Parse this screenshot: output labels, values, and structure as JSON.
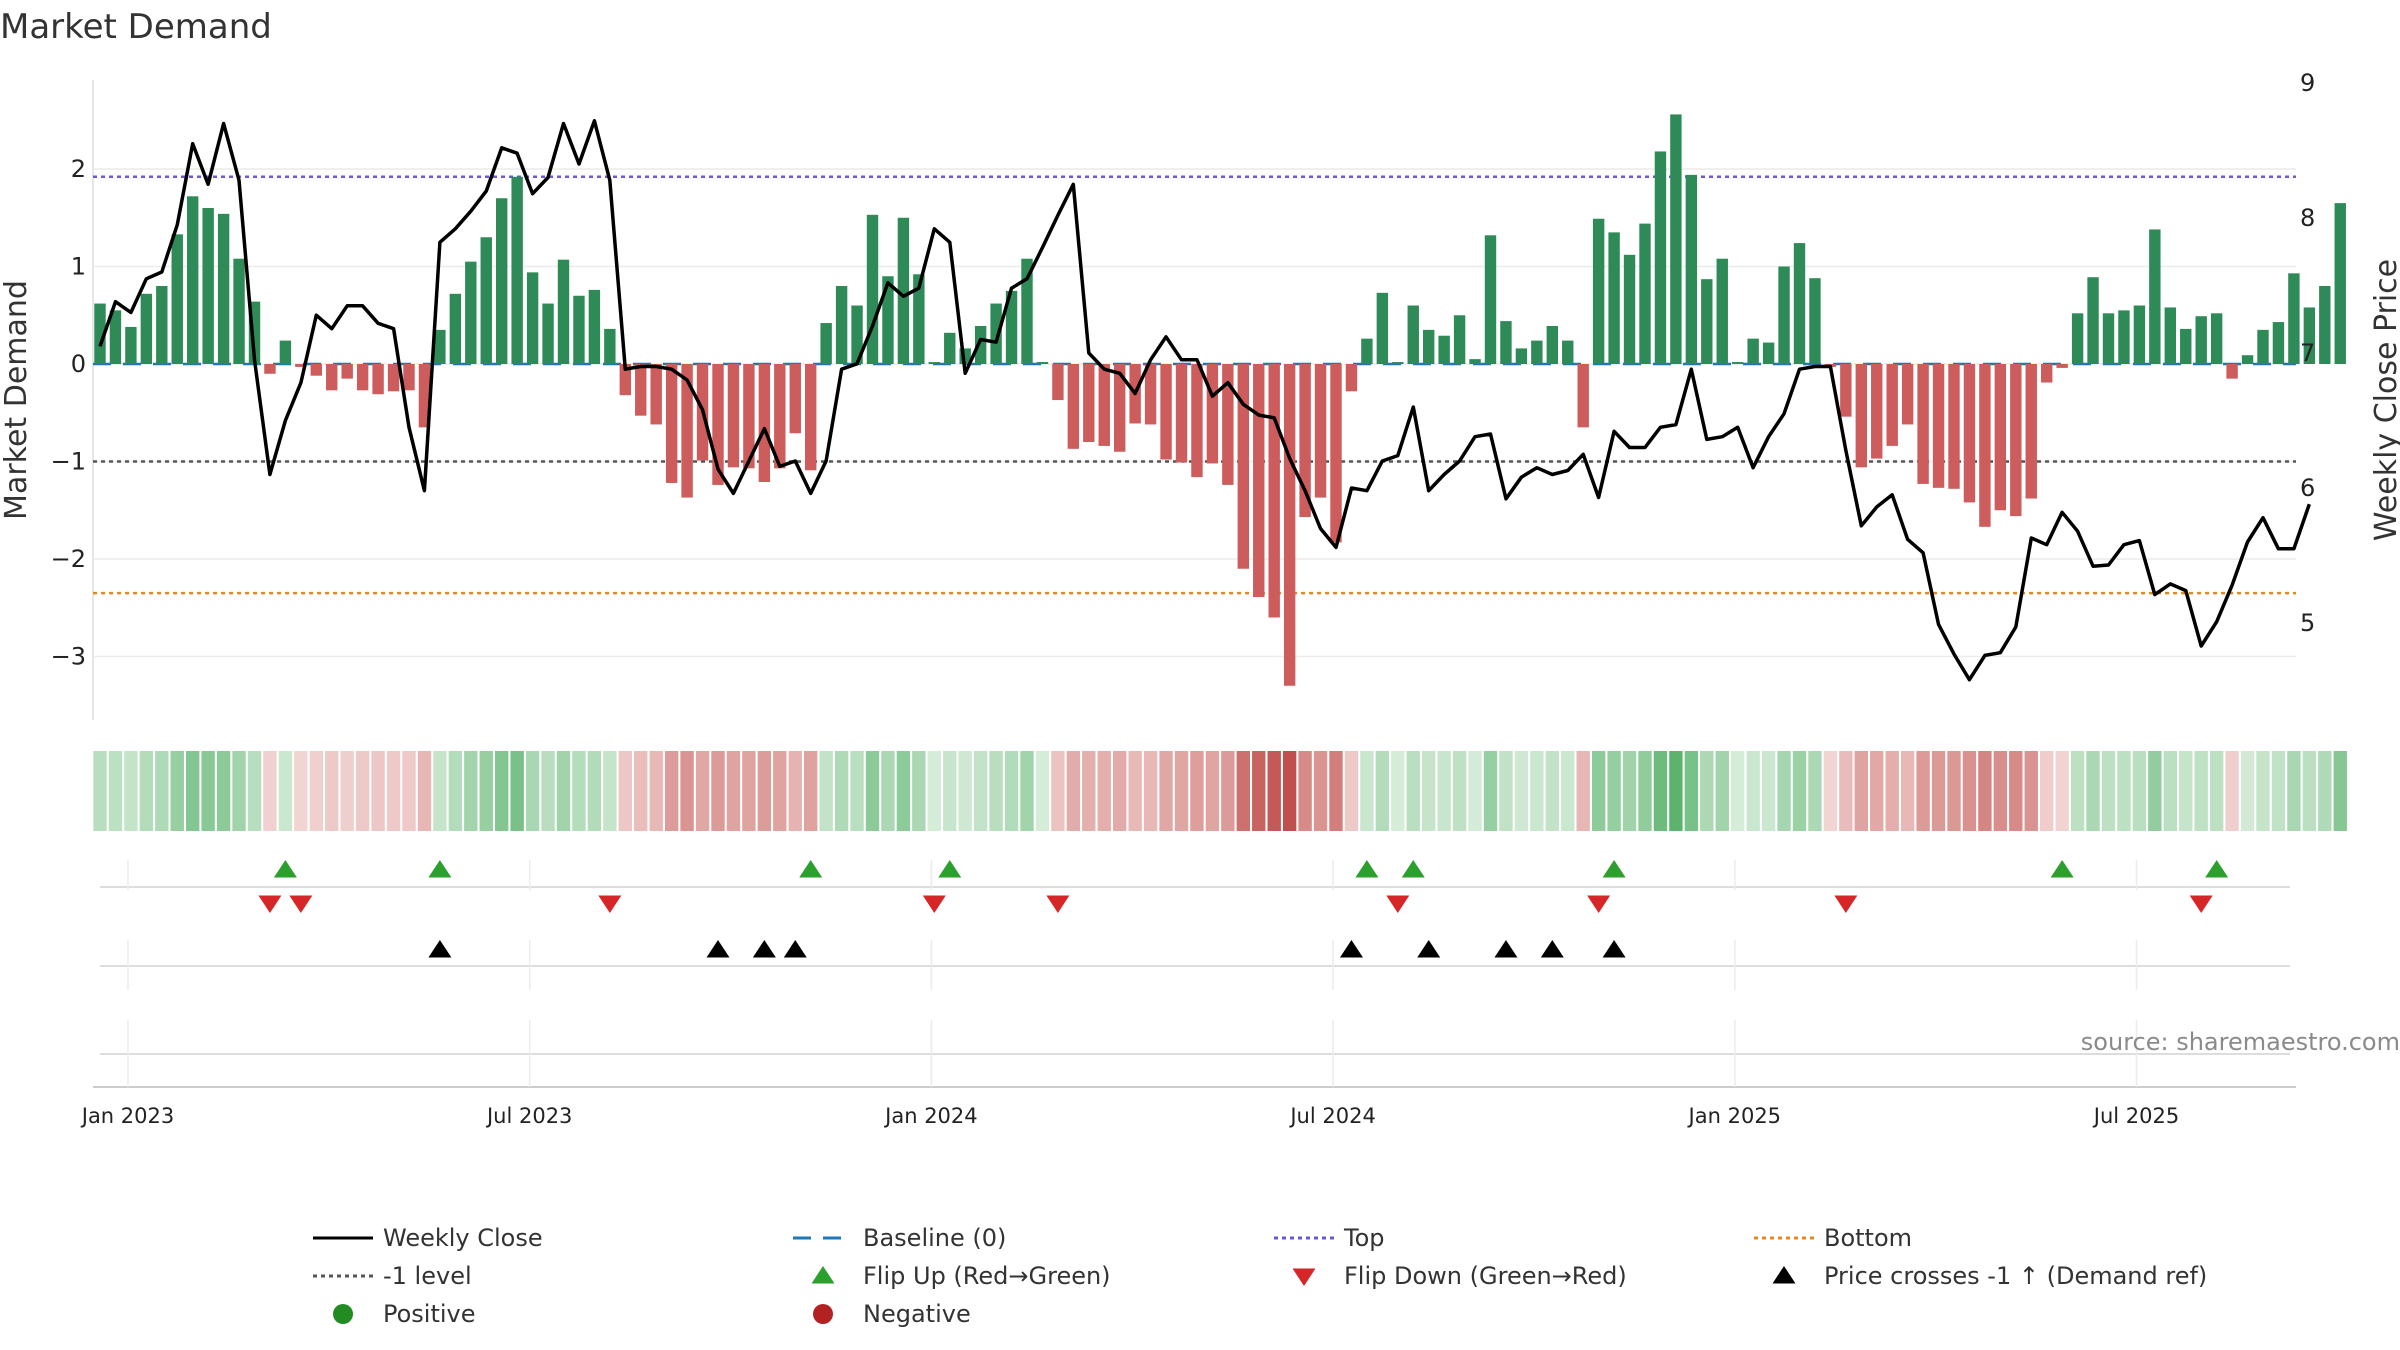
{
  "chart_data": {
    "type": "bar",
    "title": "Market Demand",
    "ylabel": "Market Demand",
    "y2label": "Weekly Close Price",
    "ylim": [
      -3.6,
      2.9
    ],
    "y2lim": [
      4.3,
      9.0
    ],
    "yticks": [
      2,
      1,
      0,
      -1,
      -2,
      -3
    ],
    "ytick_labels": [
      "2",
      "1",
      "0",
      "−1",
      "−2",
      "−3"
    ],
    "y2ticks": [
      9,
      8,
      7,
      6,
      5
    ],
    "y2tick_labels": [
      "9",
      "8",
      "7",
      "6",
      "5"
    ],
    "xticks": [
      {
        "week": 0,
        "label": "Jan 2023"
      },
      {
        "week": 26,
        "label": "Jul 2023"
      },
      {
        "week": 52,
        "label": "Jan 2024"
      },
      {
        "week": 78,
        "label": "Jul 2024"
      },
      {
        "week": 104,
        "label": "Jan 2025"
      },
      {
        "week": 130,
        "label": "Jul 2025"
      }
    ],
    "reference_lines": {
      "top": 1.92,
      "bottom": -2.35,
      "minus_one": -1,
      "baseline": 0
    },
    "demand": [
      0.62,
      0.55,
      0.38,
      0.72,
      0.8,
      1.33,
      1.72,
      1.6,
      1.54,
      1.08,
      0.64,
      -0.1,
      0.24,
      -0.03,
      -0.12,
      -0.27,
      -0.15,
      -0.27,
      -0.31,
      -0.28,
      -0.27,
      -0.65,
      0.35,
      0.72,
      1.05,
      1.3,
      1.7,
      1.92,
      0.94,
      0.62,
      1.07,
      0.7,
      0.76,
      0.36,
      -0.32,
      -0.53,
      -0.62,
      -1.22,
      -1.37,
      -0.99,
      -1.24,
      -1.06,
      -1.07,
      -1.21,
      -1.07,
      -0.71,
      -1.09,
      0.42,
      0.8,
      0.6,
      1.53,
      0.9,
      1.5,
      0.92,
      0.02,
      0.32,
      0.16,
      0.39,
      0.62,
      0.75,
      1.08,
      0.02,
      -0.37,
      -0.87,
      -0.8,
      -0.84,
      -0.9,
      -0.61,
      -0.62,
      -0.98,
      -1.01,
      -1.16,
      -1.02,
      -1.24,
      -2.1,
      -2.39,
      -2.6,
      -3.3,
      -1.57,
      -1.37,
      -1.83,
      -0.28,
      0.26,
      0.73,
      0.02,
      0.6,
      0.35,
      0.29,
      0.5,
      0.05,
      1.32,
      0.44,
      0.16,
      0.24,
      0.39,
      0.24,
      -0.65,
      1.49,
      1.35,
      1.12,
      1.44,
      2.18,
      2.56,
      1.94,
      0.87,
      1.08,
      0.02,
      0.26,
      0.22,
      1.0,
      1.24,
      0.88,
      -0.03,
      -0.54,
      -1.06,
      -0.97,
      -0.84,
      -0.62,
      -1.23,
      -1.27,
      -1.28,
      -1.42,
      -1.67,
      -1.5,
      -1.56,
      -1.38,
      -0.19,
      -0.04,
      0.52,
      0.89,
      0.52,
      0.55,
      0.6,
      1.38,
      0.58,
      0.36,
      0.49,
      0.52,
      -0.15,
      0.09,
      0.35,
      0.43,
      0.93,
      0.58,
      0.8,
      1.65
    ],
    "weekly_close": [
      7.05,
      7.38,
      7.3,
      7.55,
      7.6,
      7.95,
      8.55,
      8.25,
      8.7,
      8.28,
      6.95,
      6.1,
      6.5,
      6.78,
      7.28,
      7.18,
      7.35,
      7.35,
      7.22,
      7.18,
      6.45,
      5.98,
      7.82,
      7.92,
      8.05,
      8.2,
      8.52,
      8.48,
      8.18,
      8.3,
      8.7,
      8.4,
      8.72,
      8.28,
      6.88,
      6.9,
      6.9,
      6.88,
      6.8,
      6.58,
      6.14,
      5.96,
      6.2,
      6.44,
      6.16,
      6.2,
      5.96,
      6.2,
      6.88,
      6.92,
      7.2,
      7.52,
      7.42,
      7.48,
      7.92,
      7.82,
      6.85,
      7.1,
      7.08,
      7.48,
      7.55,
      7.78,
      8.02,
      8.25,
      7.0,
      6.88,
      6.85,
      6.7,
      6.95,
      7.12,
      6.95,
      6.95,
      6.68,
      6.78,
      6.62,
      6.54,
      6.52,
      6.22,
      5.98,
      5.7,
      5.56,
      6.0,
      5.98,
      6.2,
      6.24,
      6.6,
      5.98,
      6.1,
      6.2,
      6.38,
      6.4,
      5.92,
      6.08,
      6.15,
      6.1,
      6.13,
      6.25,
      5.93,
      6.42,
      6.3,
      6.3,
      6.45,
      6.47,
      6.88,
      6.36,
      6.38,
      6.45,
      6.15,
      6.38,
      6.55,
      6.88,
      6.9,
      6.9,
      6.28,
      5.72,
      5.86,
      5.95,
      5.62,
      5.52,
      4.99,
      4.77,
      4.58,
      4.76,
      4.78,
      4.97,
      5.63,
      5.58,
      5.82,
      5.68,
      5.42,
      5.43,
      5.58,
      5.61,
      5.21,
      5.29,
      5.24,
      4.83,
      5.01,
      5.28,
      5.6,
      5.78,
      5.55,
      5.55,
      5.88
    ],
    "flip_up_weeks": [
      12,
      22,
      46,
      55,
      82,
      85,
      98,
      127,
      137
    ],
    "flip_down_weeks": [
      11,
      13,
      33,
      54,
      62,
      84,
      97,
      113,
      136
    ],
    "price_cross_weeks": [
      22,
      40,
      43,
      45,
      81,
      86,
      91,
      94,
      98
    ],
    "colors": {
      "positive_bar": "#2e8b57",
      "negative_bar": "#cd5c5c",
      "price_line": "#000000",
      "baseline": "#1f77b4",
      "top": "#6a5acd",
      "bottom": "#e08a1e",
      "minus_one": "#555555",
      "flip_up": "#2ca02c",
      "flip_down": "#d62728",
      "cross": "#000000",
      "positive_dot": "#228b22",
      "negative_dot": "#b22222"
    },
    "legend": [
      {
        "label": "Weekly Close",
        "kind": "line",
        "color": "#000000",
        "dash": ""
      },
      {
        "label": "Baseline (0)",
        "kind": "line",
        "color": "#1f77b4",
        "dash": "18,12"
      },
      {
        "label": "Top",
        "kind": "line",
        "color": "#6a5acd",
        "dash": "4,4"
      },
      {
        "label": "Bottom",
        "kind": "line",
        "color": "#e08a1e",
        "dash": "4,4"
      },
      {
        "label": "-1 level",
        "kind": "line",
        "color": "#555555",
        "dash": "4,4"
      },
      {
        "label": "Flip Up (Red→Green)",
        "kind": "tri-up",
        "color": "#2ca02c"
      },
      {
        "label": "Flip Down (Green→Red)",
        "kind": "tri-down",
        "color": "#d62728"
      },
      {
        "label": "Price crosses -1 ↑ (Demand ref)",
        "kind": "tri-up",
        "color": "#000000"
      },
      {
        "label": "Positive",
        "kind": "dot",
        "color": "#228b22"
      },
      {
        "label": "Negative",
        "kind": "dot",
        "color": "#b22222"
      }
    ]
  },
  "source": "source: sharemaestro.com"
}
